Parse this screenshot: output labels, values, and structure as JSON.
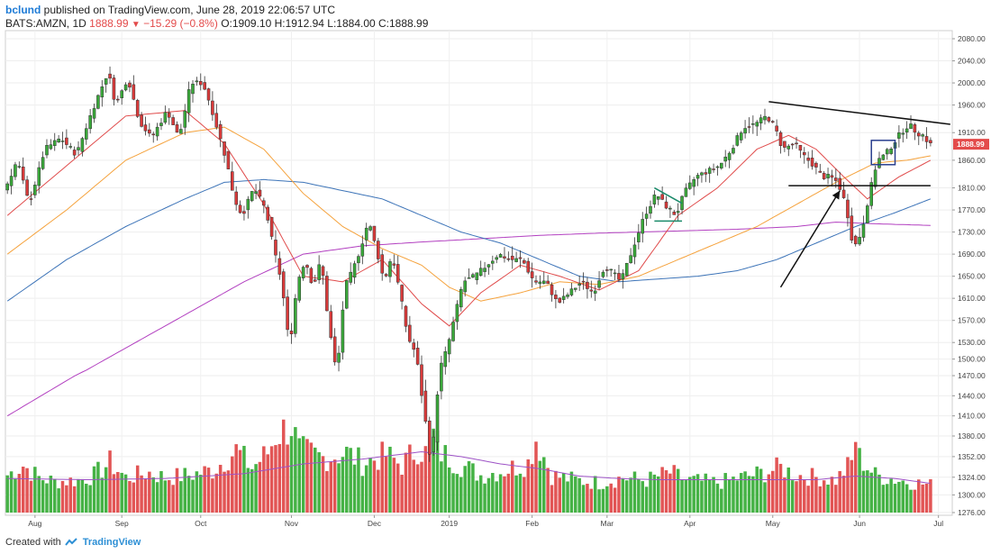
{
  "header": {
    "username": "bclund",
    "published_text": "published on TradingView.com, June 28, 2019 22:06:57 UTC",
    "symbol": "BATS:AMZN, 1D",
    "last": "1888.99",
    "change": "−15.29 (−0.8%)",
    "ohlc": "O:1909.10 H:1912.94 L:1884.00 C:1888.99"
  },
  "footer": {
    "created_with": "Created with",
    "brand": "TradingView"
  },
  "colors": {
    "up": "#3aa83a",
    "down": "#d93a3a",
    "ma_fast": "#e04b4b",
    "ma_mid": "#f5a23c",
    "ma_slow": "#3d74b8",
    "ma_long": "#b23fc0",
    "vol_up": "#45b245",
    "vol_down": "#e25555",
    "vol_ma": "#9d52c6",
    "price_badge": "#e34b4b"
  },
  "chart_data": {
    "type": "candlestick",
    "title": "",
    "y_ticks": [
      2080,
      2040,
      2000,
      1960,
      1910,
      1860,
      1810,
      1770,
      1730,
      1690,
      1650,
      1610,
      1570,
      1530,
      1500,
      1470,
      1440,
      1410,
      1380,
      1352,
      1324,
      1300,
      1276
    ],
    "y_tick_labels": [
      "2080.00",
      "2040.00",
      "2000.00",
      "1960.00",
      "1910.00",
      "1860.00",
      "1810.00",
      "1770.00",
      "1730.00",
      "1690.00",
      "1650.00",
      "1610.00",
      "1570.00",
      "1530.00",
      "1500.00",
      "1470.00",
      "1440.00",
      "1410.00",
      "1380.00",
      "1352.00",
      "1324.00",
      "1300.00",
      "1276.00"
    ],
    "last_price_label": "1888.99",
    "x_labels": [
      {
        "label": "Aug",
        "day": 7
      },
      {
        "label": "Sep",
        "day": 29
      },
      {
        "label": "Oct",
        "day": 49
      },
      {
        "label": "Nov",
        "day": 72
      },
      {
        "label": "Dec",
        "day": 93
      },
      {
        "label": "2019",
        "day": 112
      },
      {
        "label": "Feb",
        "day": 133
      },
      {
        "label": "Mar",
        "day": 152
      },
      {
        "label": "Apr",
        "day": 173
      },
      {
        "label": "May",
        "day": 194
      },
      {
        "label": "Jun",
        "day": 216
      },
      {
        "label": "Jul",
        "day": 236
      }
    ],
    "price_anchors": [
      [
        0,
        1810
      ],
      [
        3,
        1860
      ],
      [
        6,
        1780
      ],
      [
        10,
        1880
      ],
      [
        14,
        1900
      ],
      [
        18,
        1870
      ],
      [
        22,
        1950
      ],
      [
        26,
        2020
      ],
      [
        28,
        1960
      ],
      [
        31,
        2010
      ],
      [
        34,
        1930
      ],
      [
        37,
        1900
      ],
      [
        41,
        1950
      ],
      [
        44,
        1900
      ],
      [
        47,
        2000
      ],
      [
        50,
        2000
      ],
      [
        52,
        1960
      ],
      [
        54,
        1910
      ],
      [
        56,
        1860
      ],
      [
        58,
        1790
      ],
      [
        60,
        1760
      ],
      [
        63,
        1810
      ],
      [
        66,
        1770
      ],
      [
        68,
        1700
      ],
      [
        70,
        1640
      ],
      [
        72,
        1520
      ],
      [
        74,
        1640
      ],
      [
        76,
        1680
      ],
      [
        78,
        1630
      ],
      [
        80,
        1680
      ],
      [
        82,
        1560
      ],
      [
        84,
        1470
      ],
      [
        86,
        1630
      ],
      [
        88,
        1660
      ],
      [
        90,
        1700
      ],
      [
        92,
        1750
      ],
      [
        94,
        1700
      ],
      [
        96,
        1640
      ],
      [
        98,
        1690
      ],
      [
        100,
        1620
      ],
      [
        102,
        1540
      ],
      [
        104,
        1510
      ],
      [
        106,
        1420
      ],
      [
        108,
        1340
      ],
      [
        110,
        1480
      ],
      [
        112,
        1520
      ],
      [
        114,
        1580
      ],
      [
        116,
        1640
      ],
      [
        119,
        1650
      ],
      [
        122,
        1670
      ],
      [
        125,
        1690
      ],
      [
        128,
        1680
      ],
      [
        131,
        1680
      ],
      [
        134,
        1640
      ],
      [
        137,
        1640
      ],
      [
        140,
        1600
      ],
      [
        143,
        1620
      ],
      [
        146,
        1640
      ],
      [
        149,
        1620
      ],
      [
        152,
        1670
      ],
      [
        156,
        1640
      ],
      [
        159,
        1700
      ],
      [
        162,
        1760
      ],
      [
        165,
        1800
      ],
      [
        167,
        1780
      ],
      [
        170,
        1760
      ],
      [
        172,
        1800
      ],
      [
        175,
        1830
      ],
      [
        178,
        1840
      ],
      [
        181,
        1850
      ],
      [
        184,
        1880
      ],
      [
        187,
        1920
      ],
      [
        190,
        1925
      ],
      [
        193,
        1940
      ],
      [
        195,
        1920
      ],
      [
        197,
        1880
      ],
      [
        200,
        1890
      ],
      [
        202,
        1870
      ],
      [
        205,
        1850
      ],
      [
        207,
        1830
      ],
      [
        209,
        1830
      ],
      [
        211,
        1820
      ],
      [
        213,
        1780
      ],
      [
        215,
        1700
      ],
      [
        217,
        1730
      ],
      [
        219,
        1800
      ],
      [
        221,
        1860
      ],
      [
        223,
        1870
      ],
      [
        225,
        1890
      ],
      [
        227,
        1910
      ],
      [
        229,
        1925
      ],
      [
        231,
        1910
      ],
      [
        233,
        1904
      ],
      [
        234,
        1889
      ]
    ],
    "ma_fast_anchors": [
      [
        0,
        1760
      ],
      [
        20,
        1880
      ],
      [
        30,
        1940
      ],
      [
        45,
        1950
      ],
      [
        55,
        1890
      ],
      [
        65,
        1780
      ],
      [
        75,
        1650
      ],
      [
        85,
        1640
      ],
      [
        95,
        1680
      ],
      [
        105,
        1600
      ],
      [
        112,
        1560
      ],
      [
        120,
        1620
      ],
      [
        130,
        1670
      ],
      [
        140,
        1650
      ],
      [
        150,
        1625
      ],
      [
        160,
        1660
      ],
      [
        170,
        1760
      ],
      [
        180,
        1810
      ],
      [
        190,
        1880
      ],
      [
        198,
        1905
      ],
      [
        205,
        1880
      ],
      [
        212,
        1830
      ],
      [
        218,
        1790
      ],
      [
        226,
        1830
      ],
      [
        234,
        1860
      ]
    ],
    "ma_mid_anchors": [
      [
        0,
        1690
      ],
      [
        15,
        1770
      ],
      [
        30,
        1860
      ],
      [
        45,
        1910
      ],
      [
        55,
        1920
      ],
      [
        65,
        1880
      ],
      [
        75,
        1800
      ],
      [
        85,
        1740
      ],
      [
        95,
        1700
      ],
      [
        105,
        1670
      ],
      [
        112,
        1630
      ],
      [
        120,
        1605
      ],
      [
        130,
        1620
      ],
      [
        140,
        1640
      ],
      [
        150,
        1635
      ],
      [
        160,
        1650
      ],
      [
        170,
        1680
      ],
      [
        180,
        1710
      ],
      [
        190,
        1740
      ],
      [
        200,
        1780
      ],
      [
        210,
        1820
      ],
      [
        220,
        1855
      ],
      [
        228,
        1860
      ],
      [
        234,
        1868
      ]
    ],
    "ma_slow_anchors": [
      [
        0,
        1605
      ],
      [
        15,
        1680
      ],
      [
        30,
        1740
      ],
      [
        45,
        1790
      ],
      [
        55,
        1820
      ],
      [
        65,
        1825
      ],
      [
        75,
        1820
      ],
      [
        85,
        1805
      ],
      [
        95,
        1790
      ],
      [
        105,
        1760
      ],
      [
        115,
        1730
      ],
      [
        125,
        1710
      ],
      [
        135,
        1680
      ],
      [
        145,
        1650
      ],
      [
        155,
        1640
      ],
      [
        165,
        1645
      ],
      [
        175,
        1650
      ],
      [
        185,
        1660
      ],
      [
        195,
        1680
      ],
      [
        205,
        1710
      ],
      [
        215,
        1740
      ],
      [
        225,
        1765
      ],
      [
        234,
        1790
      ]
    ],
    "ma_long_anchors": [
      [
        0,
        1410
      ],
      [
        20,
        1480
      ],
      [
        40,
        1560
      ],
      [
        60,
        1640
      ],
      [
        75,
        1690
      ],
      [
        90,
        1705
      ],
      [
        105,
        1712
      ],
      [
        120,
        1718
      ],
      [
        135,
        1724
      ],
      [
        150,
        1728
      ],
      [
        170,
        1732
      ],
      [
        185,
        1735
      ],
      [
        200,
        1740
      ],
      [
        210,
        1748
      ],
      [
        220,
        1745
      ],
      [
        234,
        1742
      ]
    ],
    "volume_anchors": [
      [
        0,
        30
      ],
      [
        4,
        38
      ],
      [
        8,
        28
      ],
      [
        12,
        25
      ],
      [
        18,
        26
      ],
      [
        22,
        30
      ],
      [
        26,
        40
      ],
      [
        30,
        28
      ],
      [
        36,
        32
      ],
      [
        40,
        28
      ],
      [
        46,
        30
      ],
      [
        52,
        34
      ],
      [
        58,
        50
      ],
      [
        62,
        36
      ],
      [
        66,
        48
      ],
      [
        68,
        62
      ],
      [
        72,
        70
      ],
      [
        74,
        50
      ],
      [
        80,
        44
      ],
      [
        86,
        48
      ],
      [
        90,
        40
      ],
      [
        96,
        46
      ],
      [
        100,
        38
      ],
      [
        104,
        52
      ],
      [
        106,
        48
      ],
      [
        108,
        62
      ],
      [
        110,
        48
      ],
      [
        114,
        40
      ],
      [
        120,
        30
      ],
      [
        126,
        34
      ],
      [
        132,
        40
      ],
      [
        134,
        60
      ],
      [
        138,
        30
      ],
      [
        144,
        26
      ],
      [
        150,
        24
      ],
      [
        156,
        28
      ],
      [
        162,
        26
      ],
      [
        168,
        32
      ],
      [
        172,
        26
      ],
      [
        180,
        24
      ],
      [
        186,
        28
      ],
      [
        192,
        32
      ],
      [
        196,
        36
      ],
      [
        200,
        30
      ],
      [
        206,
        28
      ],
      [
        210,
        26
      ],
      [
        214,
        40
      ],
      [
        215,
        60
      ],
      [
        216,
        44
      ],
      [
        220,
        30
      ],
      [
        226,
        26
      ],
      [
        230,
        24
      ],
      [
        234,
        22
      ]
    ],
    "volume_ma_anchors": [
      [
        0,
        28
      ],
      [
        20,
        27
      ],
      [
        40,
        28
      ],
      [
        60,
        32
      ],
      [
        75,
        40
      ],
      [
        90,
        44
      ],
      [
        105,
        50
      ],
      [
        115,
        46
      ],
      [
        125,
        40
      ],
      [
        135,
        36
      ],
      [
        145,
        30
      ],
      [
        155,
        28
      ],
      [
        165,
        27
      ],
      [
        175,
        27
      ],
      [
        185,
        27
      ],
      [
        195,
        27
      ],
      [
        205,
        27
      ],
      [
        215,
        30
      ],
      [
        225,
        28
      ],
      [
        234,
        24
      ]
    ],
    "annotations": [
      {
        "type": "resistance_line",
        "from_day": 193,
        "from_price": 1966,
        "to_day": 239,
        "to_price": 1925
      },
      {
        "type": "support_line",
        "from_day": 198,
        "from_price": 1814,
        "to_day": 234,
        "to_price": 1814
      },
      {
        "type": "rectangle",
        "from_day": 219,
        "to_day": 225,
        "top_price": 1896,
        "bottom_price": 1852
      },
      {
        "type": "arrow",
        "from_day": 196,
        "from_price": 1630,
        "to_day": 211,
        "to_price": 1805
      },
      {
        "type": "wedge_upper",
        "from_day": 164,
        "from_price": 1810,
        "to_day": 171,
        "to_price": 1782
      },
      {
        "type": "wedge_lower",
        "from_day": 164,
        "from_price": 1750,
        "to_day": 171,
        "to_price": 1750
      }
    ]
  }
}
